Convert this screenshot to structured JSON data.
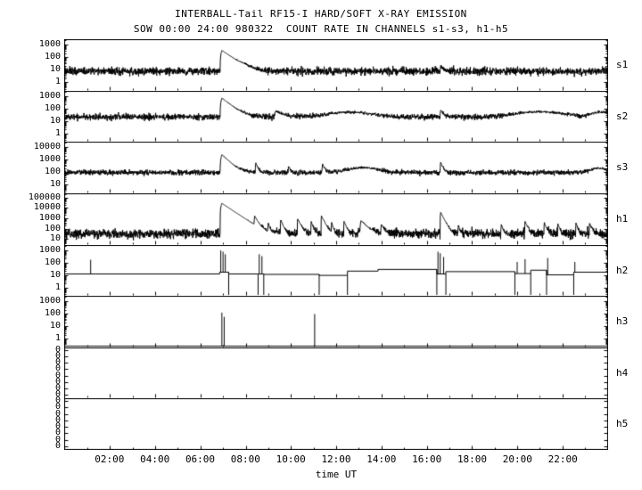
{
  "title": "INTERBALL-Tail RF15-I HARD/SOFT X-RAY EMISSION",
  "subtitle": "SOW 00:00 24:00 980322  COUNT RATE IN CHANNELS s1-s3, h1-h5",
  "chart_data": {
    "type": "line",
    "title": "INTERBALL-Tail RF15-I HARD/SOFT X-RAY EMISSION",
    "subtitle": "SOW 00:00 24:00 980322  COUNT RATE IN CHANNELS s1-s3, h1-h5",
    "xlabel": "time UT",
    "x_range_hours": [
      0,
      24
    ],
    "grid": false,
    "line_color": "#000000",
    "x_ticks": [
      {
        "hour": 2,
        "label": "02:00"
      },
      {
        "hour": 4,
        "label": "04:00"
      },
      {
        "hour": 6,
        "label": "06:00"
      },
      {
        "hour": 8,
        "label": "08:00"
      },
      {
        "hour": 10,
        "label": "10:00"
      },
      {
        "hour": 12,
        "label": "12:00"
      },
      {
        "hour": 14,
        "label": "14:00"
      },
      {
        "hour": 16,
        "label": "16:00"
      },
      {
        "hour": 18,
        "label": "18:00"
      },
      {
        "hour": 20,
        "label": "20:00"
      },
      {
        "hour": 22,
        "label": "22:00"
      }
    ],
    "panels": [
      {
        "name": "s1",
        "style": "noisy",
        "log_range": [
          -0.6,
          3.4
        ],
        "y_ticks": [
          {
            "label": "1000",
            "value": 1000
          },
          {
            "label": "100",
            "value": 100
          },
          {
            "label": "10",
            "value": 10
          },
          {
            "label": "1",
            "value": 1
          }
        ],
        "baseline": 8,
        "noise_dex": 0.15,
        "events": [
          {
            "t": 6.95,
            "peak": 350,
            "rise": 0.08,
            "decay": 0.35
          },
          {
            "t": 16.62,
            "peak": 15,
            "rise": 0.03,
            "decay": 0.1
          }
        ],
        "bumps": [
          {
            "t": 7.9,
            "peak": 5,
            "width": 0.25
          }
        ]
      },
      {
        "name": "s2",
        "style": "noisy",
        "log_range": [
          -0.6,
          3.4
        ],
        "y_ticks": [
          {
            "label": "1000",
            "value": 1000
          },
          {
            "label": "100",
            "value": 100
          },
          {
            "label": "10",
            "value": 10
          },
          {
            "label": "1",
            "value": 1
          }
        ],
        "baseline": 22,
        "noise_dex": 0.12,
        "events": [
          {
            "t": 6.95,
            "peak": 700,
            "rise": 0.08,
            "decay": 0.3
          },
          {
            "t": 9.35,
            "peak": 45,
            "rise": 0.1,
            "decay": 0.3
          },
          {
            "t": 16.62,
            "peak": 60,
            "rise": 0.03,
            "decay": 0.1
          }
        ],
        "bumps": [
          {
            "t": 12.6,
            "peak": 30,
            "width": 1.2
          },
          {
            "t": 21.0,
            "peak": 35,
            "width": 1.3
          },
          {
            "t": 23.7,
            "peak": 30,
            "width": 0.5
          }
        ]
      },
      {
        "name": "s3",
        "style": "noisy",
        "log_range": [
          0.4,
          4.4
        ],
        "y_ticks": [
          {
            "label": "10000",
            "value": 10000
          },
          {
            "label": "1000",
            "value": 1000
          },
          {
            "label": "100",
            "value": 100
          },
          {
            "label": "10",
            "value": 10
          }
        ],
        "baseline": 100,
        "noise_dex": 0.1,
        "events": [
          {
            "t": 6.95,
            "peak": 2500,
            "rise": 0.08,
            "decay": 0.25
          },
          {
            "t": 8.45,
            "peak": 450,
            "rise": 0.03,
            "decay": 0.08
          },
          {
            "t": 9.9,
            "peak": 220,
            "rise": 0.03,
            "decay": 0.06
          },
          {
            "t": 11.4,
            "peak": 380,
            "rise": 0.03,
            "decay": 0.08
          },
          {
            "t": 16.62,
            "peak": 550,
            "rise": 0.03,
            "decay": 0.08
          }
        ],
        "bumps": [
          {
            "t": 13.2,
            "peak": 140,
            "width": 0.8
          },
          {
            "t": 23.6,
            "peak": 120,
            "width": 0.4
          }
        ]
      },
      {
        "name": "h1",
        "style": "noisy",
        "log_range": [
          0.5,
          5.4
        ],
        "y_ticks": [
          {
            "label": "100000",
            "value": 100000
          },
          {
            "label": "10000",
            "value": 10000
          },
          {
            "label": "1000",
            "value": 1000
          },
          {
            "label": "100",
            "value": 100
          },
          {
            "label": "10",
            "value": 10
          }
        ],
        "baseline": 35,
        "noise_dex": 0.22,
        "events": [
          {
            "t": 6.95,
            "peak": 30000,
            "rise": 0.08,
            "decay": 0.3
          },
          {
            "t": 8.4,
            "peak": 1500,
            "rise": 0.03,
            "decay": 0.1
          },
          {
            "t": 9.0,
            "peak": 300,
            "rise": 0.02,
            "decay": 0.05
          },
          {
            "t": 9.55,
            "peak": 700,
            "rise": 0.02,
            "decay": 0.08
          },
          {
            "t": 10.3,
            "peak": 900,
            "rise": 0.02,
            "decay": 0.1
          },
          {
            "t": 10.9,
            "peak": 500,
            "rise": 0.02,
            "decay": 0.06
          },
          {
            "t": 11.35,
            "peak": 1800,
            "rise": 0.02,
            "decay": 0.1
          },
          {
            "t": 11.8,
            "peak": 400,
            "rise": 0.02,
            "decay": 0.05
          },
          {
            "t": 12.35,
            "peak": 500,
            "rise": 0.02,
            "decay": 0.08
          },
          {
            "t": 13.1,
            "peak": 600,
            "rise": 0.05,
            "decay": 0.2
          },
          {
            "t": 14.0,
            "peak": 250,
            "rise": 0.03,
            "decay": 0.1
          },
          {
            "t": 16.62,
            "peak": 4000,
            "rise": 0.03,
            "decay": 0.1
          },
          {
            "t": 17.4,
            "peak": 200,
            "rise": 0.02,
            "decay": 0.05
          },
          {
            "t": 19.3,
            "peak": 250,
            "rise": 0.02,
            "decay": 0.06
          },
          {
            "t": 20.35,
            "peak": 500,
            "rise": 0.02,
            "decay": 0.08
          },
          {
            "t": 21.2,
            "peak": 350,
            "rise": 0.02,
            "decay": 0.08
          },
          {
            "t": 21.8,
            "peak": 300,
            "rise": 0.02,
            "decay": 0.06
          },
          {
            "t": 22.6,
            "peak": 350,
            "rise": 0.02,
            "decay": 0.06
          },
          {
            "t": 23.2,
            "peak": 300,
            "rise": 0.02,
            "decay": 0.08
          }
        ],
        "bumps": []
      },
      {
        "name": "h2",
        "style": "steps",
        "log_range": [
          -0.6,
          3.4
        ],
        "y_ticks": [
          {
            "label": "1000",
            "value": 1000
          },
          {
            "label": "100",
            "value": 100
          },
          {
            "label": "10",
            "value": 10
          },
          {
            "label": "1",
            "value": 1
          }
        ],
        "segments": [
          [
            0,
            6.85,
            13
          ],
          [
            6.85,
            7.25,
            18
          ],
          [
            7.25,
            8.55,
            13
          ],
          [
            8.55,
            8.8,
            13
          ],
          [
            8.8,
            11.25,
            12
          ],
          [
            11.25,
            12.5,
            10
          ],
          [
            12.5,
            13.85,
            22
          ],
          [
            13.85,
            16.45,
            30
          ],
          [
            16.45,
            16.85,
            13
          ],
          [
            16.85,
            19.9,
            20
          ],
          [
            19.9,
            20.6,
            14
          ],
          [
            20.6,
            21.3,
            26
          ],
          [
            21.3,
            22.5,
            11
          ],
          [
            22.5,
            24,
            18
          ]
        ],
        "spikes": [
          {
            "t": 1.15,
            "peak": 180
          },
          {
            "t": 6.9,
            "peak": 1000
          },
          {
            "t": 7.0,
            "peak": 800
          },
          {
            "t": 7.1,
            "peak": 500
          },
          {
            "t": 8.6,
            "peak": 500
          },
          {
            "t": 8.72,
            "peak": 350
          },
          {
            "t": 16.5,
            "peak": 800
          },
          {
            "t": 16.6,
            "peak": 600
          },
          {
            "t": 16.75,
            "peak": 300
          },
          {
            "t": 20.0,
            "peak": 120
          },
          {
            "t": 20.35,
            "peak": 200
          },
          {
            "t": 21.35,
            "peak": 250
          },
          {
            "t": 22.55,
            "peak": 120
          }
        ],
        "drops": [
          7.25,
          8.55,
          8.8,
          11.25,
          12.5,
          16.45,
          16.85,
          19.9,
          20.6,
          21.3,
          22.5
        ]
      },
      {
        "name": "h3",
        "style": "spikes",
        "log_range": [
          -0.6,
          3.4
        ],
        "y_ticks": [
          {
            "label": "1000",
            "value": 1000
          },
          {
            "label": "100",
            "value": 100
          },
          {
            "label": "10",
            "value": 10
          },
          {
            "label": "1",
            "value": 1
          }
        ],
        "spikes": [
          {
            "t": 6.95,
            "peak": 130
          },
          {
            "t": 7.05,
            "peak": 60
          },
          {
            "t": 11.05,
            "peak": 100
          }
        ]
      },
      {
        "name": "h4",
        "style": "empty",
        "log_range": null,
        "y_ticks": [
          {
            "label": "0"
          },
          {
            "label": "0"
          },
          {
            "label": "0"
          },
          {
            "label": "0"
          },
          {
            "label": "0"
          },
          {
            "label": "0"
          },
          {
            "label": "0"
          },
          {
            "label": "0"
          }
        ]
      },
      {
        "name": "h5",
        "style": "empty",
        "log_range": null,
        "y_ticks": [
          {
            "label": "0"
          },
          {
            "label": "0"
          },
          {
            "label": "0"
          },
          {
            "label": "0"
          },
          {
            "label": "0"
          },
          {
            "label": "0"
          },
          {
            "label": "0"
          },
          {
            "label": "0"
          }
        ]
      }
    ]
  }
}
